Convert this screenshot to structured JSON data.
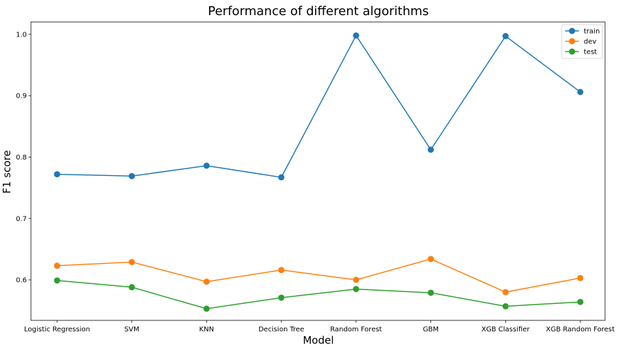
{
  "chart_data": {
    "type": "line",
    "title": "Performance of different algorithms",
    "xlabel": "Model",
    "ylabel": "F1 score",
    "categories": [
      "Logistic Regression",
      "SVM",
      "KNN",
      "Decision Tree",
      "Random Forest",
      "GBM",
      "XGB Classifier",
      "XGB Random Forest"
    ],
    "ylim": [
      0.534,
      1.02
    ],
    "yticks": [
      0.6,
      0.7,
      0.8,
      0.9,
      1.0
    ],
    "ytick_labels": [
      "0.6",
      "0.7",
      "0.8",
      "0.9",
      "1.0"
    ],
    "grid": false,
    "legend_position": "top-right",
    "series": [
      {
        "name": "train",
        "color": "#1f77b4",
        "values": [
          0.772,
          0.769,
          0.786,
          0.767,
          0.998,
          0.812,
          0.997,
          0.906
        ]
      },
      {
        "name": "dev",
        "color": "#ff7f0e",
        "values": [
          0.623,
          0.629,
          0.597,
          0.616,
          0.6,
          0.634,
          0.58,
          0.603
        ]
      },
      {
        "name": "test",
        "color": "#2ca02c",
        "values": [
          0.599,
          0.588,
          0.553,
          0.571,
          0.585,
          0.579,
          0.557,
          0.564
        ]
      }
    ]
  }
}
